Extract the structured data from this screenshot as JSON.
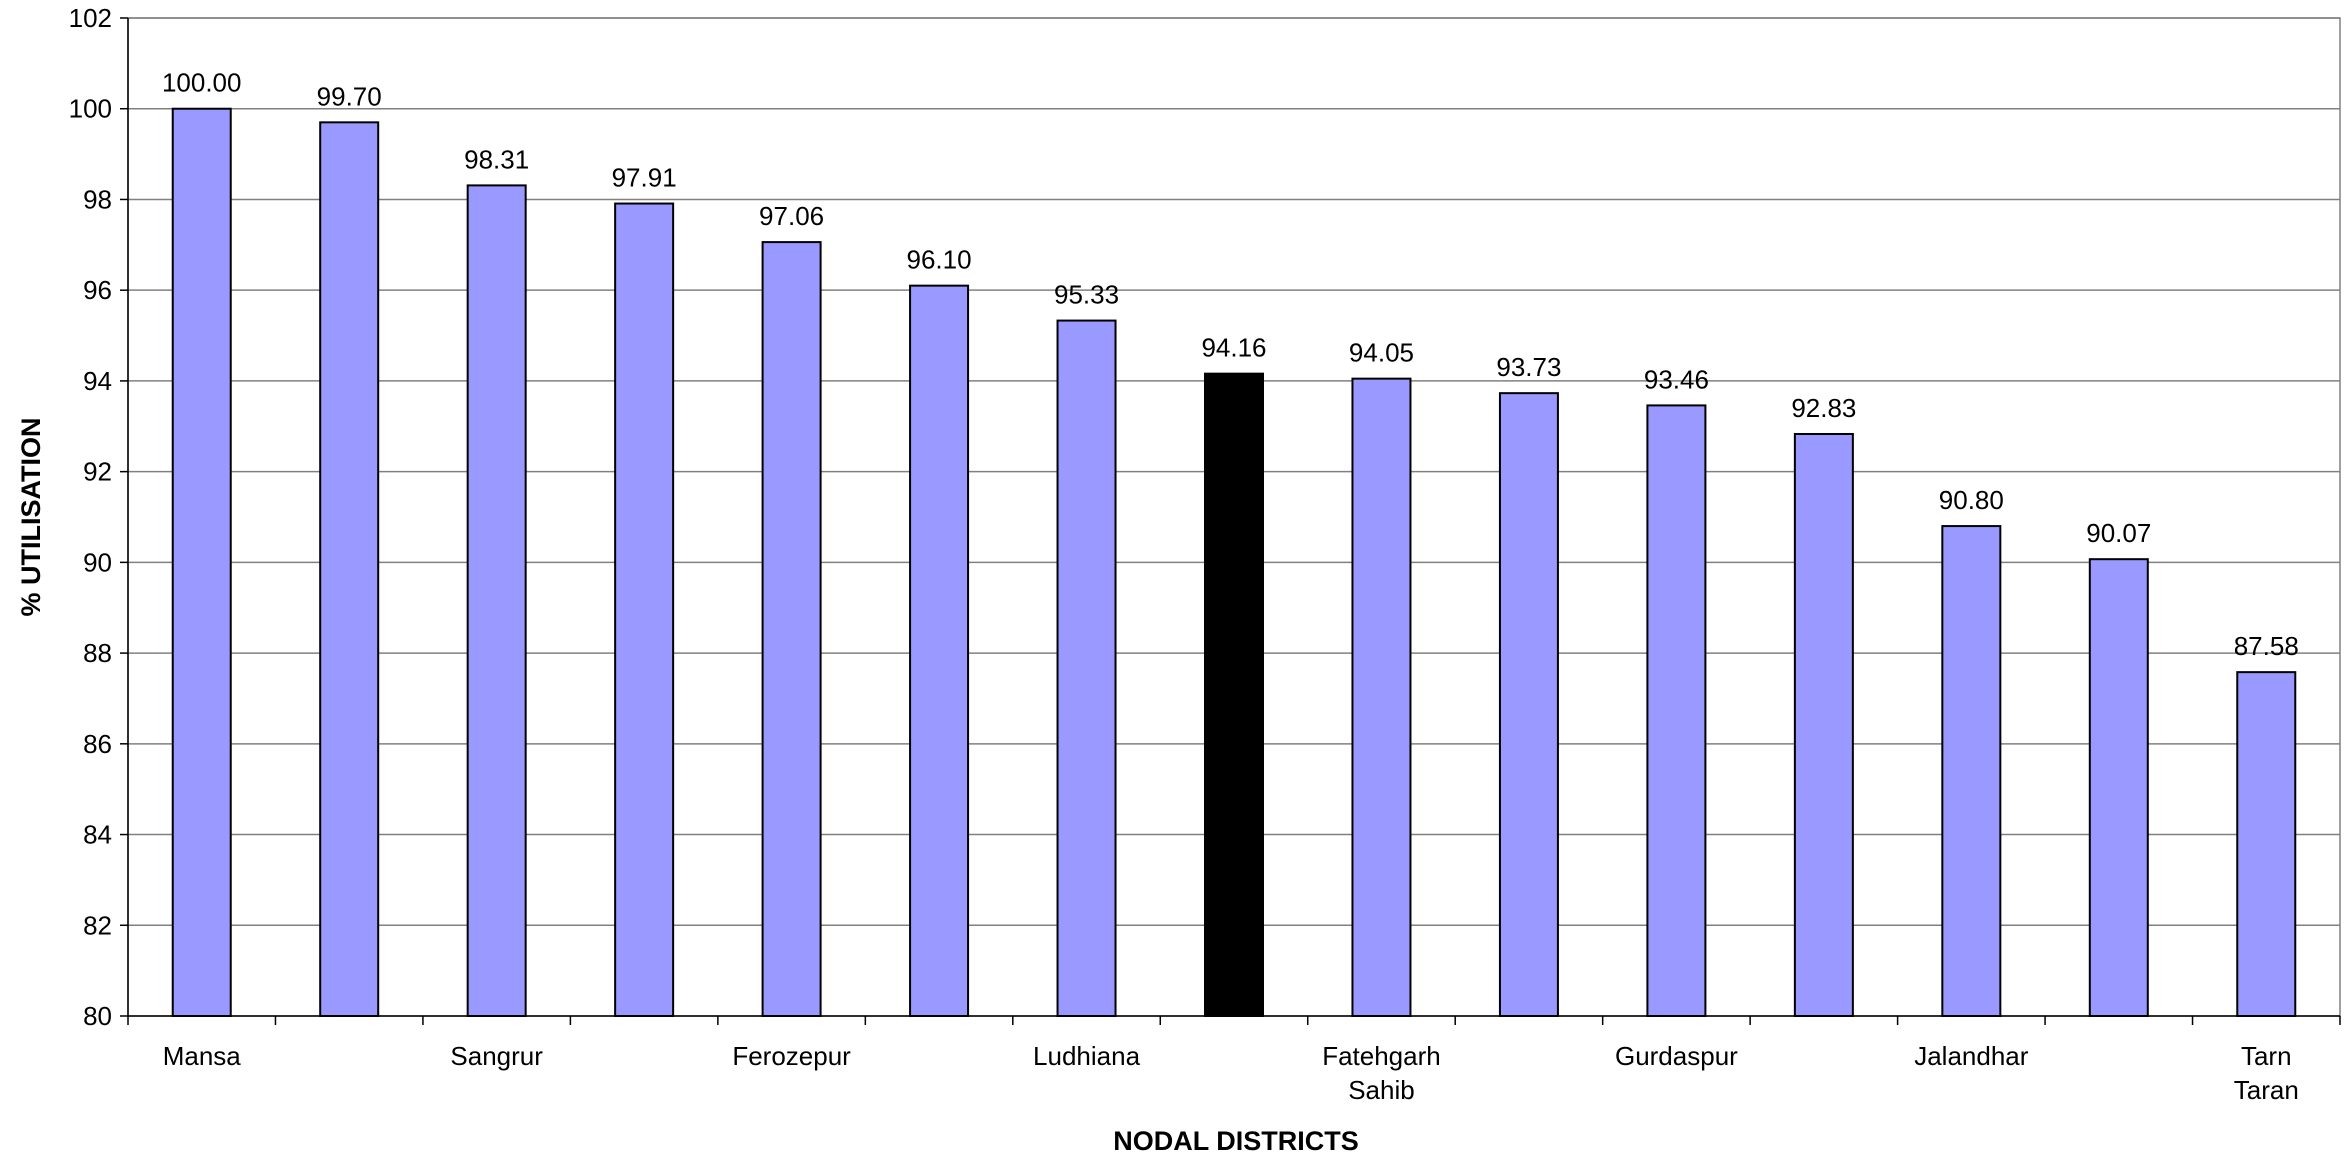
{
  "chart_data": {
    "type": "bar",
    "xlabel": "NODAL DISTRICTS",
    "ylabel": "% UTILISATION",
    "ylim": [
      80,
      102
    ],
    "yticks": [
      80,
      82,
      84,
      86,
      88,
      90,
      92,
      94,
      96,
      98,
      100,
      102
    ],
    "grid": true,
    "legend": "none",
    "bar_color": "#9999ff",
    "highlight_color": "#000000",
    "highlight_index": 7,
    "categories": [
      "Mansa",
      "",
      "Sangrur",
      "",
      "Ferozepur",
      "",
      "Ludhiana",
      "",
      "Fatehgarh Sahib",
      "",
      "Gurdaspur",
      "",
      "Jalandhar",
      "",
      "Tarn Taran"
    ],
    "category_lines": [
      [
        "Mansa"
      ],
      [],
      [
        "Sangrur"
      ],
      [],
      [
        "Ferozepur"
      ],
      [],
      [
        "Ludhiana"
      ],
      [],
      [
        "Fatehgarh",
        "Sahib"
      ],
      [],
      [
        "Gurdaspur"
      ],
      [],
      [
        "Jalandhar"
      ],
      [],
      [
        "Tarn",
        "Taran"
      ]
    ],
    "values": [
      100.0,
      99.7,
      98.31,
      97.91,
      97.06,
      96.1,
      95.33,
      94.16,
      94.05,
      93.73,
      93.46,
      92.83,
      90.8,
      90.07,
      87.58
    ],
    "data_labels": [
      "100.00",
      "99.70",
      "98.31",
      "97.91",
      "97.06",
      "96.10",
      "95.33",
      "94.16",
      "94.05",
      "93.73",
      "93.46",
      "92.83",
      "90.80",
      "90.07",
      "87.58"
    ]
  }
}
